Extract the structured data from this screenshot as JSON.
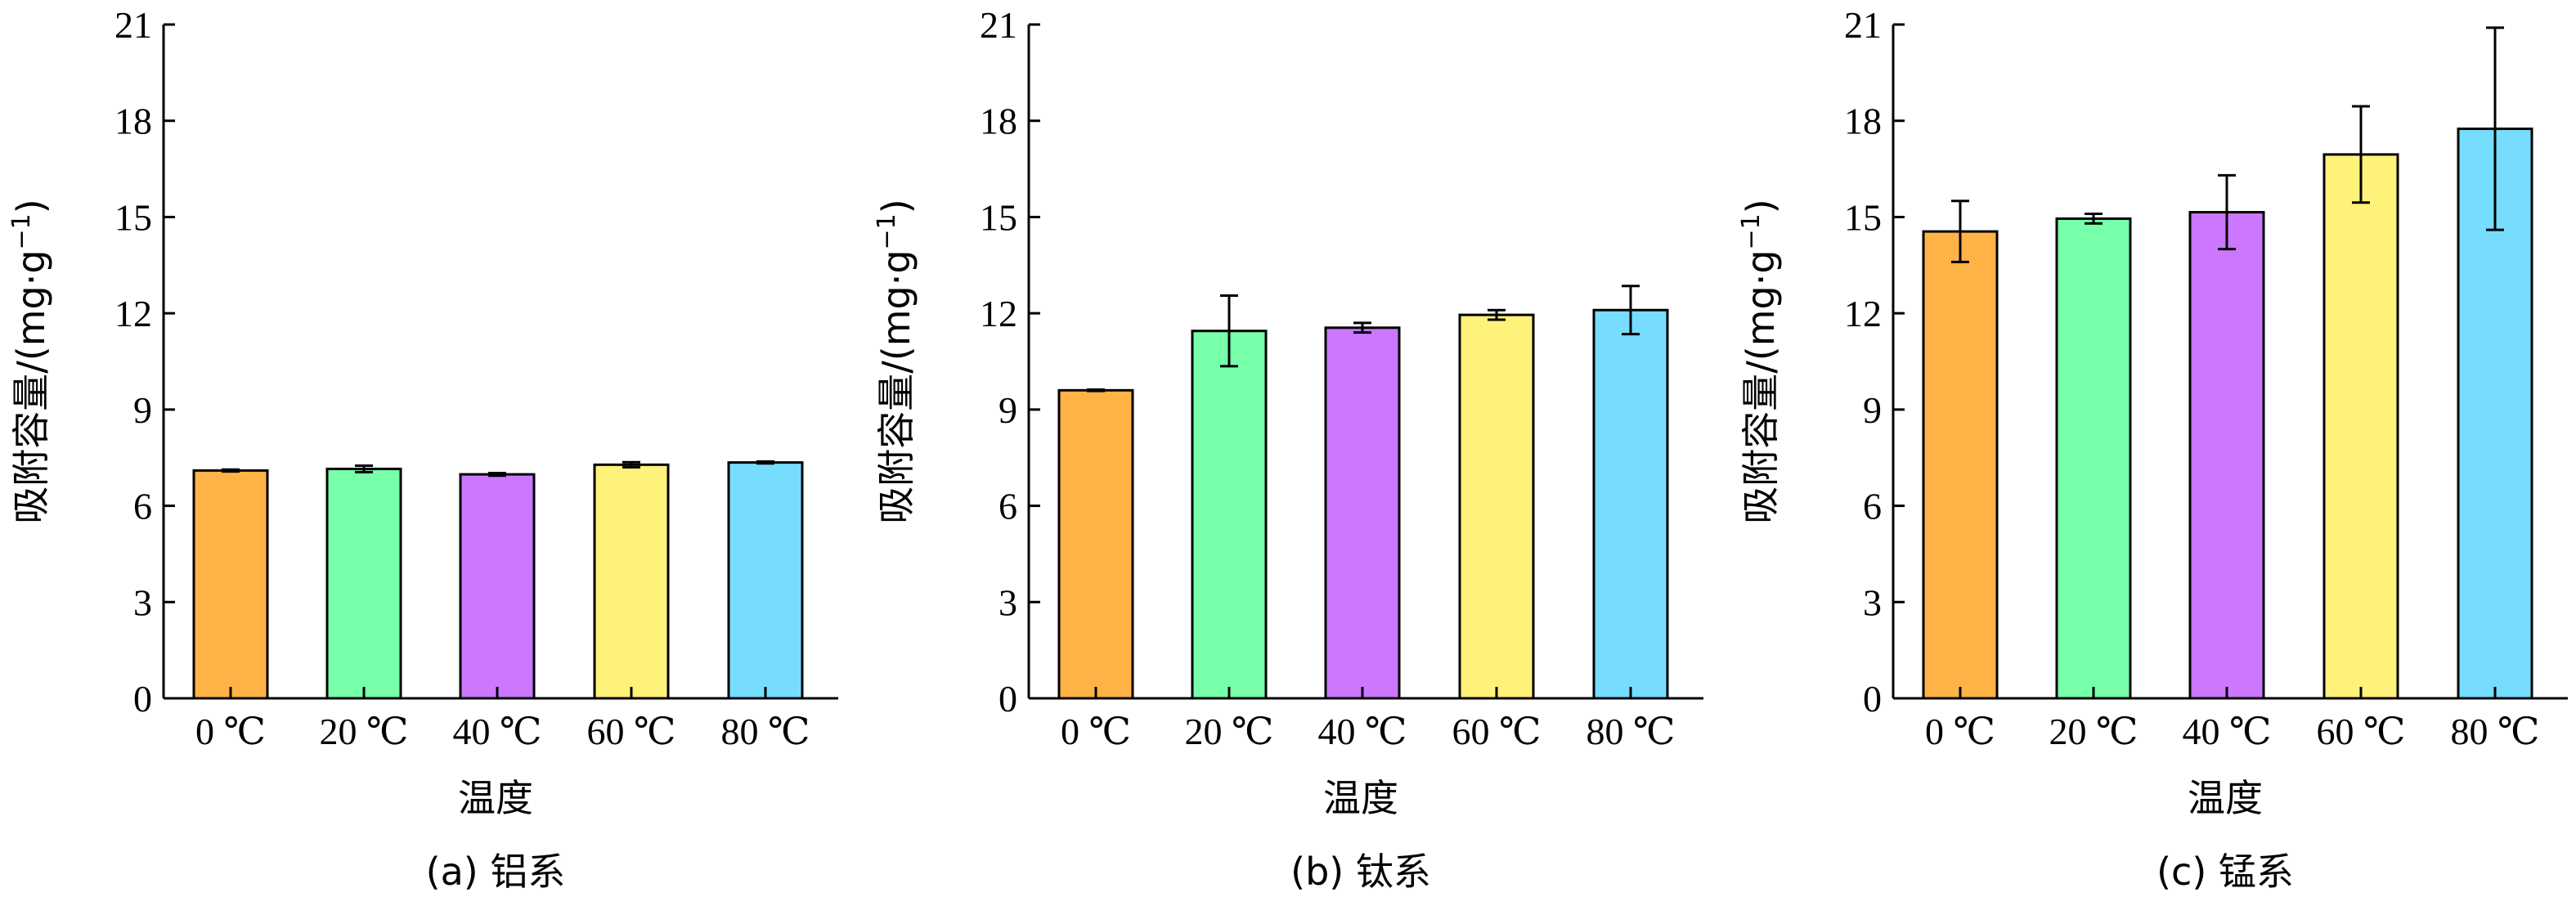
{
  "chart_data": [
    {
      "type": "bar",
      "caption": "(a) 铝系",
      "xlabel": "温度",
      "ylabel": "吸附容量/(mg·g",
      "ylabel_sup": "−1",
      "ylabel_close": ")",
      "ylim": [
        0,
        21
      ],
      "yticks": [
        "0",
        "3",
        "6",
        "9",
        "12",
        "15",
        "18",
        "21"
      ],
      "categories": [
        "0 ℃",
        "20 ℃",
        "40 ℃",
        "60 ℃",
        "80 ℃"
      ],
      "values": [
        7.1,
        7.15,
        6.98,
        7.28,
        7.35
      ],
      "errors": [
        0.03,
        0.1,
        0.04,
        0.08,
        0.03
      ],
      "colors": [
        "#FFB347",
        "#77FFAA",
        "#CC77FF",
        "#FFF27A",
        "#77DDFF"
      ]
    },
    {
      "type": "bar",
      "caption": "(b) 钛系",
      "xlabel": "温度",
      "ylabel": "吸附容量/(mg·g",
      "ylabel_sup": "−1",
      "ylabel_close": ")",
      "ylim": [
        0,
        21
      ],
      "yticks": [
        "0",
        "3",
        "6",
        "9",
        "12",
        "15",
        "18",
        "21"
      ],
      "categories": [
        "0 ℃",
        "20 ℃",
        "40 ℃",
        "60 ℃",
        "80 ℃"
      ],
      "values": [
        9.6,
        11.45,
        11.55,
        11.95,
        12.1
      ],
      "errors": [
        0.02,
        1.1,
        0.15,
        0.15,
        0.75
      ],
      "colors": [
        "#FFB347",
        "#77FFAA",
        "#CC77FF",
        "#FFF27A",
        "#77DDFF"
      ]
    },
    {
      "type": "bar",
      "caption": "(c) 锰系",
      "xlabel": "温度",
      "ylabel": "吸附容量/(mg·g",
      "ylabel_sup": "−1",
      "ylabel_close": ")",
      "ylim": [
        0,
        21
      ],
      "yticks": [
        "0",
        "3",
        "6",
        "9",
        "12",
        "15",
        "18",
        "21"
      ],
      "categories": [
        "0 ℃",
        "20 ℃",
        "40 ℃",
        "60 ℃",
        "80 ℃"
      ],
      "values": [
        14.55,
        14.95,
        15.15,
        16.95,
        17.75
      ],
      "errors": [
        0.95,
        0.15,
        1.15,
        1.5,
        3.15
      ],
      "colors": [
        "#FFB347",
        "#77FFAA",
        "#CC77FF",
        "#FFF27A",
        "#77DDFF"
      ]
    }
  ]
}
